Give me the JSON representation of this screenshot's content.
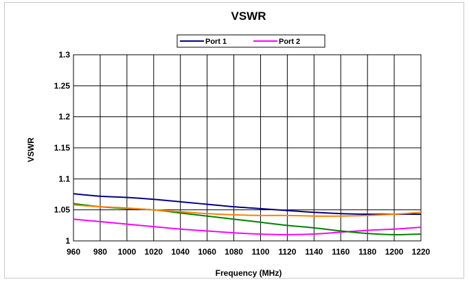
{
  "chart_data": {
    "type": "line",
    "title": "VSWR",
    "xlabel": "Frequency (MHz)",
    "ylabel": "VSWR",
    "xlim": [
      960,
      1220
    ],
    "ylim": [
      1,
      1.3
    ],
    "grid": true,
    "legend_position": "top-center",
    "x_ticks": [
      "960",
      "980",
      "1000",
      "1020",
      "1040",
      "1060",
      "1080",
      "1100",
      "1120",
      "1140",
      "1160",
      "1180",
      "1200",
      "1220"
    ],
    "y_ticks": [
      "1",
      "1.05",
      "1.1",
      "1.15",
      "1.2",
      "1.25",
      "1.3"
    ],
    "series": [
      {
        "name": "Port 1",
        "color": "#000080",
        "x": [
          960,
          980,
          1000,
          1020,
          1040,
          1060,
          1080,
          1100,
          1120,
          1140,
          1160,
          1180,
          1200,
          1220
        ],
        "y": [
          1.076,
          1.072,
          1.07,
          1.067,
          1.063,
          1.059,
          1.055,
          1.052,
          1.049,
          1.046,
          1.044,
          1.043,
          1.043,
          1.043
        ]
      },
      {
        "name": "Port 2",
        "color": "#ff00ff",
        "x": [
          960,
          980,
          1000,
          1020,
          1040,
          1060,
          1080,
          1100,
          1120,
          1140,
          1160,
          1180,
          1200,
          1220
        ],
        "y": [
          1.035,
          1.031,
          1.027,
          1.023,
          1.019,
          1.016,
          1.013,
          1.011,
          1.01,
          1.011,
          1.014,
          1.017,
          1.019,
          1.022
        ]
      },
      {
        "name": "",
        "color": "#008000",
        "x": [
          960,
          980,
          1000,
          1020,
          1040,
          1060,
          1080,
          1100,
          1120,
          1140,
          1160,
          1180,
          1200,
          1220
        ],
        "y": [
          1.06,
          1.055,
          1.052,
          1.05,
          1.045,
          1.04,
          1.035,
          1.03,
          1.025,
          1.021,
          1.016,
          1.012,
          1.01,
          1.011
        ]
      },
      {
        "name": "",
        "color": "#ff8000",
        "x": [
          960,
          980,
          1000,
          1020,
          1040,
          1060,
          1080,
          1100,
          1120,
          1140,
          1160,
          1180,
          1200,
          1220
        ],
        "y": [
          1.058,
          1.055,
          1.053,
          1.05,
          1.047,
          1.044,
          1.042,
          1.041,
          1.041,
          1.04,
          1.04,
          1.041,
          1.043,
          1.046
        ]
      }
    ]
  }
}
